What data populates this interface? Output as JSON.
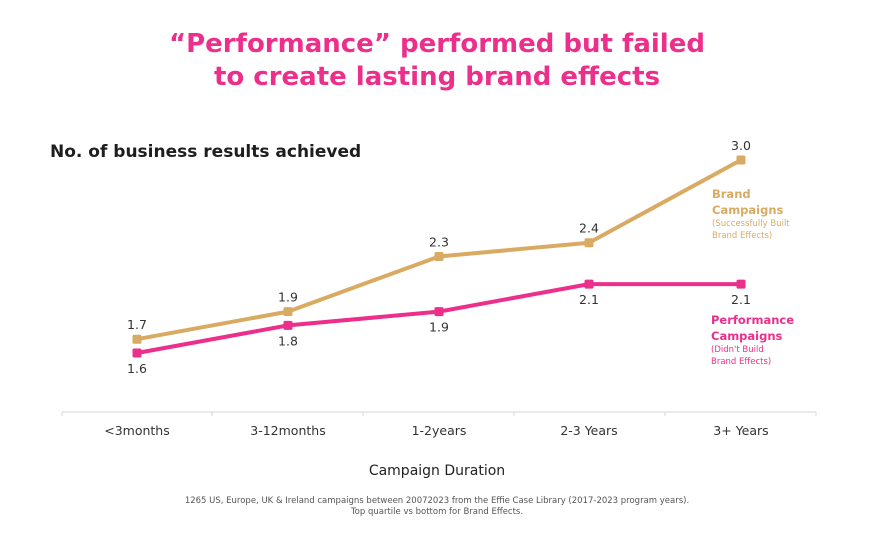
{
  "title": {
    "line1": "“Performance” performed but failed",
    "line2": "to create lasting brand effects"
  },
  "chart_data": {
    "type": "line",
    "title": "“Performance” performed but failed to create lasting brand effects",
    "ylabel": "No. of business results achieved",
    "xlabel": "Campaign Duration",
    "categories": [
      "<3months",
      "3-12months",
      "1-2years",
      "2-3 Years",
      "3+ Years"
    ],
    "ylim": [
      1.6,
      3.0
    ],
    "grid": false,
    "series": [
      {
        "name": "Brand Campaigns",
        "name_line1": "Brand",
        "name_line2": "Campaigns",
        "subtitle_line1": "(Successfully Built",
        "subtitle_line2": "Brand Effects)",
        "color": "#d9aa62",
        "values": [
          1.7,
          1.9,
          2.3,
          2.4,
          3.0
        ],
        "labels": [
          "1.7",
          "1.9",
          "2.3",
          "2.4",
          "3.0"
        ]
      },
      {
        "name": "Performance Campaigns",
        "name_line1": "Performance",
        "name_line2": "Campaigns",
        "subtitle_line1": "(Didn't Build",
        "subtitle_line2": "Brand Effects)",
        "color": "#ec2f8b",
        "values": [
          1.6,
          1.8,
          1.9,
          2.1,
          2.1
        ],
        "labels": [
          "1.6",
          "1.8",
          "1.9",
          "2.1",
          "2.1"
        ]
      }
    ]
  },
  "footnote": {
    "line1": "1265 US, Europe, UK & Ireland campaigns between 20072023 from the Effie Case Library (2017-2023 program years).",
    "line2": "Top quartile vs bottom for Brand Effects."
  }
}
